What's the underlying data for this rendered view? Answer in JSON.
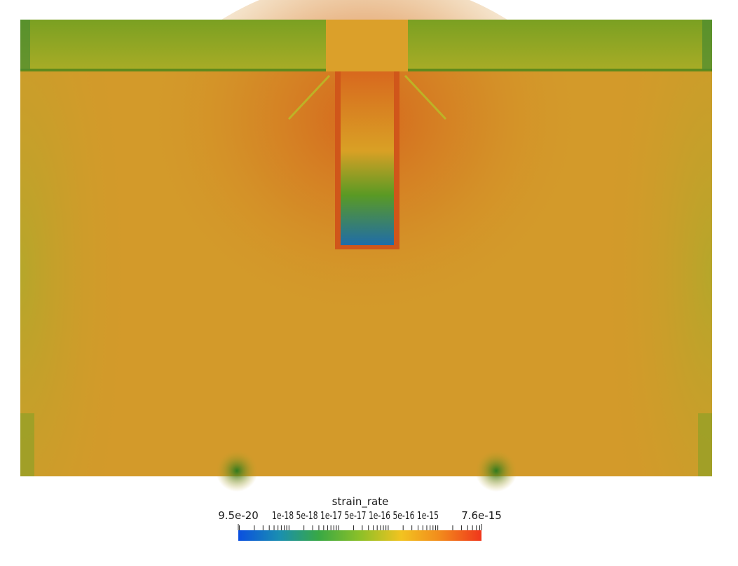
{
  "scalar_bar": {
    "title": "strain_rate",
    "min_label": "9.5e-20",
    "max_label": "7.6e-15",
    "tick_labels": "1e-18 5e-18 1e-17 5e-17 1e-16 5e-16 1e-15",
    "scale": "log",
    "colormap": [
      "#0a4fe0",
      "#1a8fb0",
      "#38a845",
      "#8cc028",
      "#f2c320",
      "#f28a1c",
      "#f0361c"
    ]
  },
  "colors": {
    "background": "#ffffff",
    "field_base": "#d39a2a",
    "field_high": "#d7661e",
    "field_low": "#6f9a22"
  }
}
